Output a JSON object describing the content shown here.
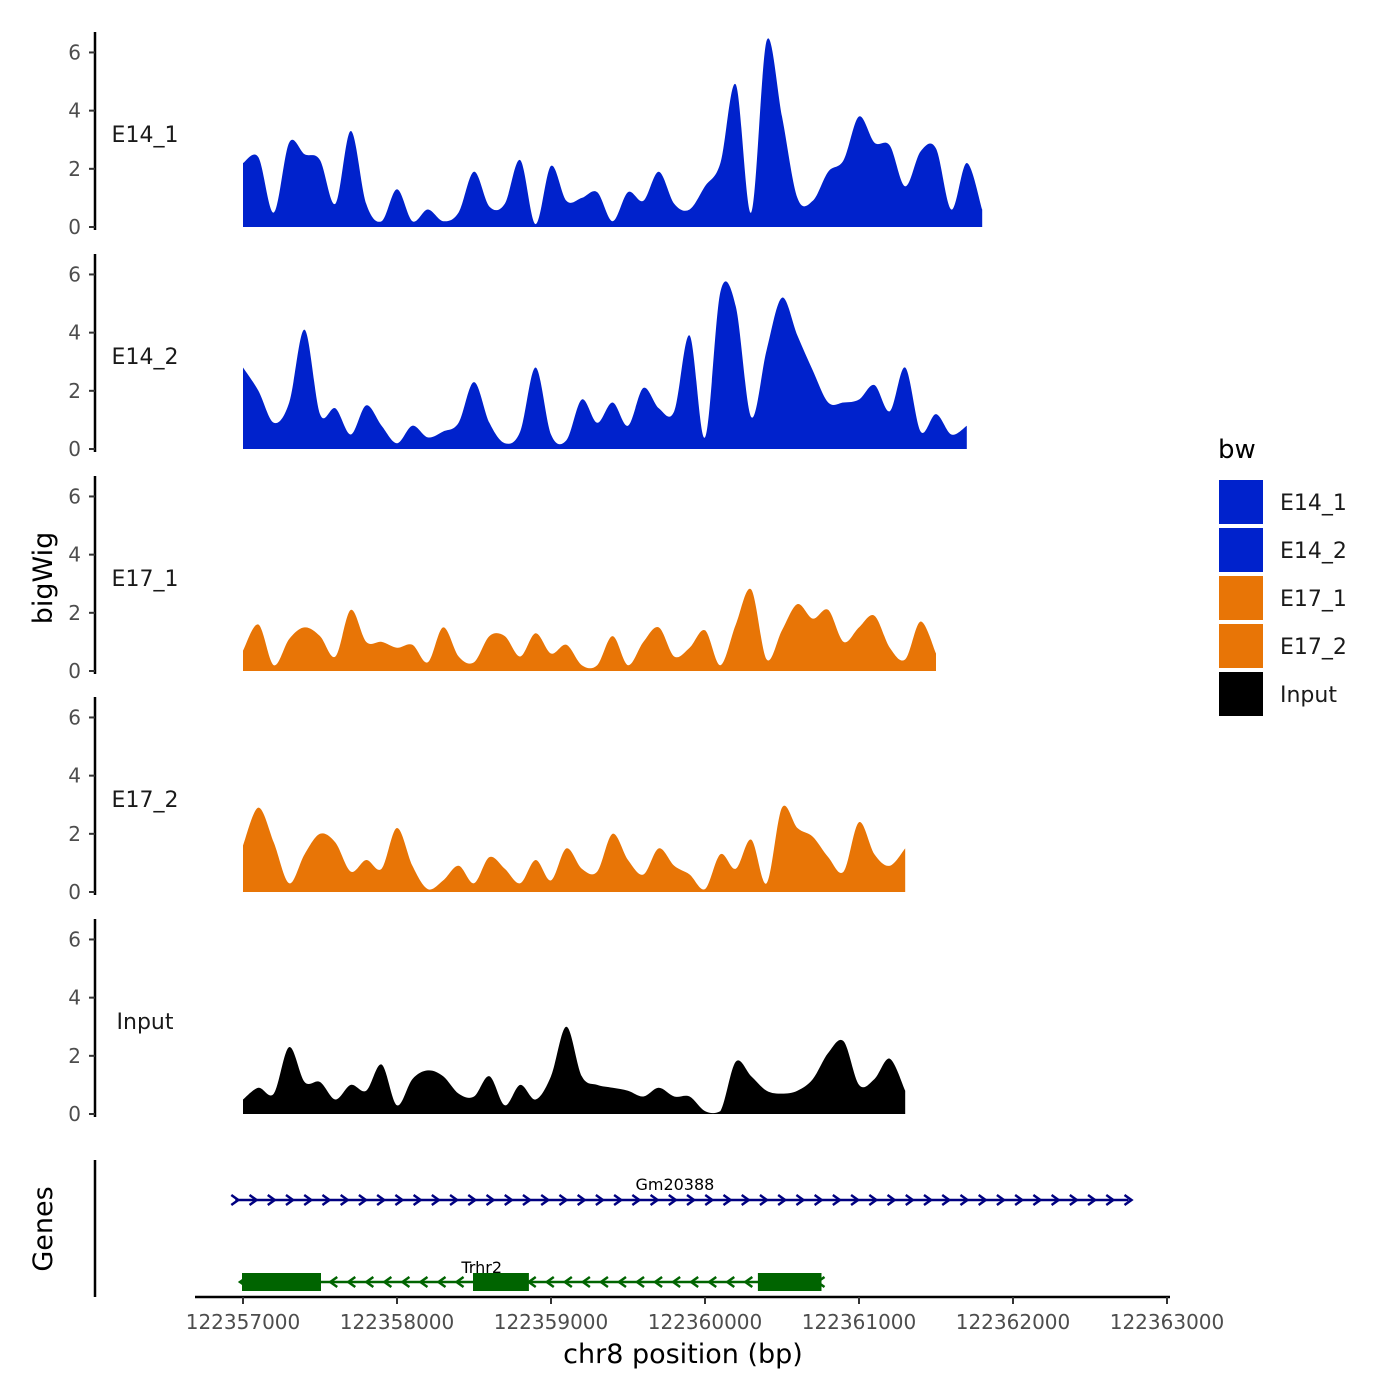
{
  "chart_data": {
    "type": "area",
    "ylabel": "bigWig",
    "xlabel": "chr8 position (bp)",
    "genes_label": "Genes",
    "xlim": [
      122356700,
      122363050
    ],
    "ylim": [
      0,
      6.6
    ],
    "x_ticks": [
      122357000,
      122358000,
      122359000,
      122360000,
      122361000,
      122362000,
      122363000
    ],
    "x_tick_labels": [
      "122357000",
      "122358000",
      "122359000",
      "122360000",
      "122361000",
      "122362000",
      "122363000"
    ],
    "y_ticks": [
      0,
      2,
      4,
      6
    ],
    "y_tick_labels": [
      "0",
      "2",
      "4",
      "6"
    ],
    "x_start": 122357000,
    "x_step": 100,
    "legend": {
      "title": "bw",
      "entries": [
        {
          "label": "E14_1",
          "color": "#0022cc"
        },
        {
          "label": "E14_2",
          "color": "#0022cc"
        },
        {
          "label": "E17_1",
          "color": "#e87506"
        },
        {
          "label": "E17_2",
          "color": "#e87506"
        },
        {
          "label": "Input",
          "color": "#000000"
        }
      ]
    },
    "series": [
      {
        "name": "E14_1",
        "color": "#0022cc",
        "values": [
          2.2,
          2.4,
          0.5,
          2.9,
          2.5,
          2.3,
          0.8,
          3.3,
          0.8,
          0.2,
          1.3,
          0.2,
          0.6,
          0.2,
          0.5,
          1.9,
          0.7,
          0.8,
          2.3,
          0.1,
          2.1,
          0.9,
          1.0,
          1.2,
          0.2,
          1.2,
          0.9,
          1.9,
          0.8,
          0.6,
          1.4,
          2.2,
          4.9,
          0.5,
          6.4,
          3.8,
          1.0,
          0.9,
          1.9,
          2.3,
          3.8,
          2.9,
          2.8,
          1.4,
          2.6,
          2.7,
          0.6,
          2.2,
          0.6
        ]
      },
      {
        "name": "E14_2",
        "color": "#0022cc",
        "values": [
          2.8,
          2.0,
          0.9,
          1.6,
          4.1,
          1.2,
          1.4,
          0.5,
          1.5,
          0.8,
          0.2,
          0.8,
          0.4,
          0.6,
          0.9,
          2.3,
          0.9,
          0.2,
          0.6,
          2.8,
          0.5,
          0.3,
          1.7,
          0.9,
          1.6,
          0.8,
          2.1,
          1.4,
          1.3,
          3.9,
          0.4,
          5.4,
          4.9,
          1.1,
          3.4,
          5.2,
          3.9,
          2.7,
          1.6,
          1.6,
          1.7,
          2.2,
          1.3,
          2.8,
          0.6,
          1.2,
          0.5,
          0.8
        ]
      },
      {
        "name": "E17_1",
        "color": "#e87506",
        "values": [
          0.7,
          1.6,
          0.2,
          1.1,
          1.5,
          1.2,
          0.5,
          2.1,
          1.0,
          1.0,
          0.8,
          0.9,
          0.3,
          1.5,
          0.5,
          0.3,
          1.2,
          1.2,
          0.5,
          1.3,
          0.6,
          0.9,
          0.2,
          0.2,
          1.2,
          0.2,
          1.0,
          1.5,
          0.5,
          0.8,
          1.4,
          0.2,
          1.6,
          2.8,
          0.4,
          1.4,
          2.3,
          1.8,
          2.1,
          1.0,
          1.5,
          1.9,
          0.8,
          0.4,
          1.7,
          0.6
        ]
      },
      {
        "name": "E17_2",
        "color": "#e87506",
        "values": [
          1.6,
          2.9,
          1.7,
          0.3,
          1.3,
          2.0,
          1.7,
          0.7,
          1.1,
          0.8,
          2.2,
          0.9,
          0.1,
          0.4,
          0.9,
          0.3,
          1.2,
          0.8,
          0.3,
          1.1,
          0.4,
          1.5,
          0.8,
          0.7,
          2.0,
          1.1,
          0.6,
          1.5,
          0.9,
          0.6,
          0.1,
          1.3,
          0.8,
          1.8,
          0.3,
          2.9,
          2.2,
          1.9,
          1.2,
          0.7,
          2.4,
          1.3,
          0.9,
          1.5
        ]
      },
      {
        "name": "Input",
        "color": "#000000",
        "values": [
          0.5,
          0.9,
          0.7,
          2.3,
          1.1,
          1.1,
          0.5,
          1.0,
          0.8,
          1.7,
          0.3,
          1.2,
          1.5,
          1.3,
          0.7,
          0.6,
          1.3,
          0.3,
          1.0,
          0.5,
          1.3,
          3.0,
          1.3,
          1.0,
          0.9,
          0.8,
          0.6,
          0.9,
          0.6,
          0.6,
          0.1,
          0.1,
          1.8,
          1.3,
          0.8,
          0.7,
          0.8,
          1.2,
          2.1,
          2.5,
          1.0,
          1.2,
          1.9,
          0.8
        ]
      }
    ],
    "genes": [
      {
        "name": "Gm20388",
        "start": 122356950,
        "end": 122362750,
        "strand": "+",
        "color": "#000080",
        "exons": []
      },
      {
        "name": "Trhr2",
        "start": 122357000,
        "end": 122360750,
        "strand": "-",
        "color": "#006400",
        "exons": [
          [
            122357000,
            122357500
          ],
          [
            122358500,
            122358850
          ],
          [
            122360350,
            122360750
          ]
        ]
      }
    ]
  }
}
